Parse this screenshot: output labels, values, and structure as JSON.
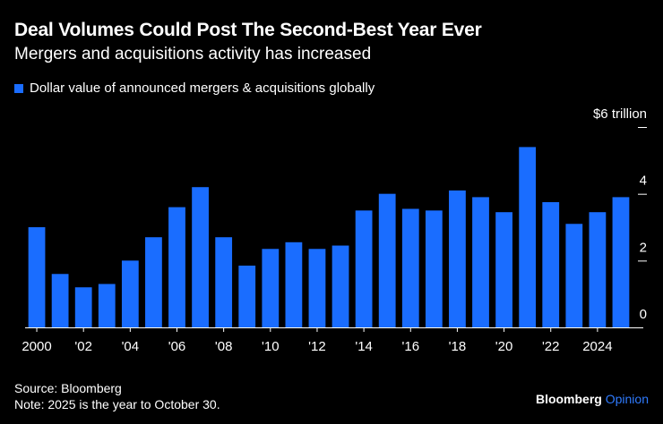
{
  "header": {
    "title": "Deal Volumes Could Post The Second-Best Year Ever",
    "subtitle": "Mergers and acquisitions activity has increased"
  },
  "legend": {
    "label": "Dollar value of announced mergers & acquisitions globally"
  },
  "colors": {
    "bar": "#1a6dff",
    "background": "#000000",
    "text": "#ffffff",
    "brand_accent": "#2f7bff"
  },
  "chart_data": {
    "type": "bar",
    "title": "Deal Volumes Could Post The Second-Best Year Ever",
    "xlabel": "",
    "ylabel": "",
    "unit_label": "$6 trillion",
    "ylim": [
      0,
      6
    ],
    "y_ticks": [
      {
        "value": 0,
        "label": "0"
      },
      {
        "value": 2,
        "label": "2"
      },
      {
        "value": 4,
        "label": "4"
      },
      {
        "value": 6,
        "label": "$6 trillion"
      }
    ],
    "categories": [
      "2000",
      "2001",
      "2002",
      "2003",
      "2004",
      "2005",
      "2006",
      "2007",
      "2008",
      "2009",
      "2010",
      "2011",
      "2012",
      "2013",
      "2014",
      "2015",
      "2016",
      "2017",
      "2018",
      "2019",
      "2020",
      "2021",
      "2022",
      "2023",
      "2024",
      "2025"
    ],
    "x_tick_labels": [
      {
        "index": 0,
        "label": "2000"
      },
      {
        "index": 2,
        "label": "'02"
      },
      {
        "index": 4,
        "label": "'04"
      },
      {
        "index": 6,
        "label": "'06"
      },
      {
        "index": 8,
        "label": "'08"
      },
      {
        "index": 10,
        "label": "'10"
      },
      {
        "index": 12,
        "label": "'12"
      },
      {
        "index": 14,
        "label": "'14"
      },
      {
        "index": 16,
        "label": "'16"
      },
      {
        "index": 18,
        "label": "'18"
      },
      {
        "index": 20,
        "label": "'20"
      },
      {
        "index": 22,
        "label": "'22"
      },
      {
        "index": 24,
        "label": "2024"
      }
    ],
    "values": [
      3.0,
      1.6,
      1.2,
      1.3,
      2.0,
      2.7,
      3.6,
      4.2,
      2.7,
      1.85,
      2.35,
      2.55,
      2.35,
      2.45,
      3.5,
      4.0,
      3.55,
      3.5,
      4.1,
      3.9,
      3.45,
      5.4,
      3.75,
      3.1,
      3.45,
      3.9
    ]
  },
  "footer": {
    "source": "Source: Bloomberg",
    "note": "Note: 2025 is the year to October 30.",
    "brand_main": "Bloomberg",
    "brand_accent": "Opinion"
  }
}
